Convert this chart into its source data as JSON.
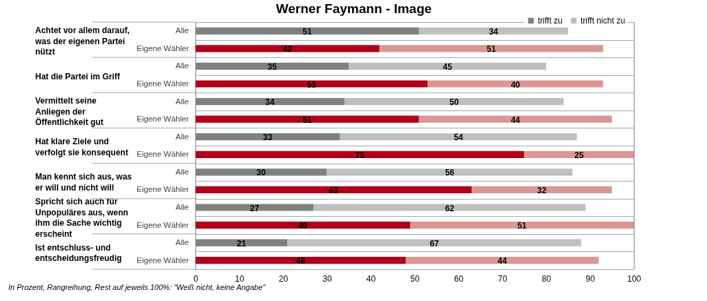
{
  "chart_data": {
    "type": "bar",
    "orientation": "horizontal",
    "stacked": true,
    "title": "Werner Faymann - Image",
    "categories": [
      "Alle",
      "Eigene Wähler",
      "Alle",
      "Eigene Wähler",
      "Alle",
      "Eigene Wähler",
      "Alle",
      "Eigene Wähler",
      "Alle",
      "Eigene Wähler",
      "Alle",
      "Eigene Wähler",
      "Alle",
      "Eigene Wähler"
    ],
    "series": [
      {
        "name": "trifft zu",
        "colors": [
          "#808080",
          "#b2001a",
          "#808080",
          "#b2001a",
          "#808080",
          "#b2001a",
          "#808080",
          "#b2001a",
          "#808080",
          "#b2001a",
          "#808080",
          "#b2001a",
          "#808080",
          "#b2001a"
        ],
        "values": [
          51,
          42,
          35,
          53,
          34,
          51,
          33,
          75,
          30,
          63,
          27,
          49,
          21,
          48
        ]
      },
      {
        "name": "trifft nicht zu",
        "colors": [
          "#bfbfbf",
          "#da9694",
          "#bfbfbf",
          "#da9694",
          "#bfbfbf",
          "#da9694",
          "#bfbfbf",
          "#da9694",
          "#bfbfbf",
          "#da9694",
          "#bfbfbf",
          "#da9694",
          "#bfbfbf",
          "#da9694"
        ],
        "values": [
          34,
          51,
          45,
          40,
          50,
          44,
          54,
          25,
          56,
          32,
          62,
          51,
          67,
          44
        ]
      }
    ],
    "xlim": [
      0,
      100
    ],
    "xticks": [
      0,
      10,
      20,
      30,
      40,
      50,
      60,
      70,
      80,
      90,
      100
    ],
    "grid": "y",
    "legend": "top right",
    "data_labels": true,
    "annotations": [
      "Achtet vor allem darauf,\nwas der eigenen  Partei\nnützt",
      "Hat die Partei im Griff",
      "Vermittelt seine\nAnliegen der\nÖffentlichkeit gut",
      "Hat klare Ziele und\nverfolgt sie konsequent",
      "Man kennt sich aus, was\ner will und nicht will",
      "Spricht sich auch für\nUnpopuläres aus, wenn\nihm die Sache wichtig\nerscheint",
      "Ist entschluss- und\nentscheidungsfreudig",
      "In Prozent, Rangreihung, Rest auf jeweils 100%: \"Weiß nicht, keine Angabe\""
    ]
  }
}
